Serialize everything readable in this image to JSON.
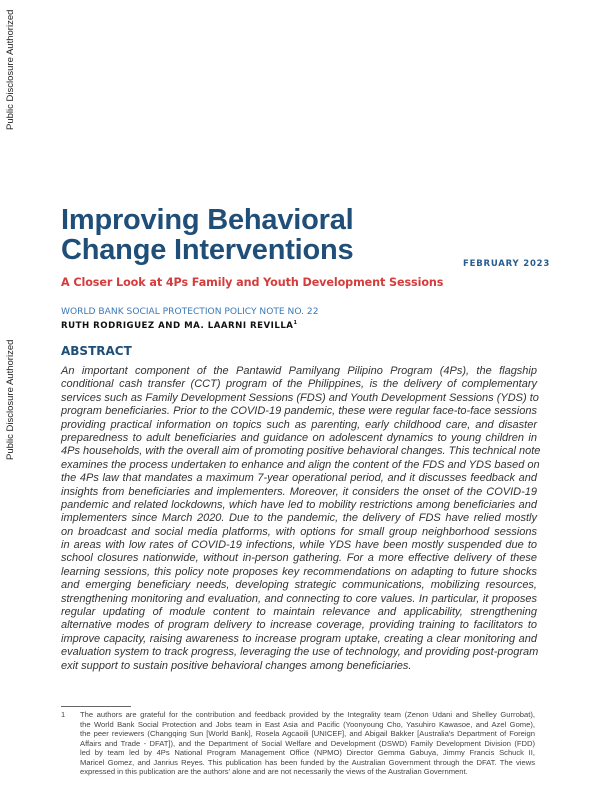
{
  "watermark": "Public Disclosure Authorized",
  "header": {
    "title_lines": [
      "Improving Behavioral",
      "Change Interventions"
    ],
    "date": "FEBRUARY 2023",
    "subtitle": "A Closer Look at 4Ps Family and Youth Development Sessions",
    "series": "WORLD BANK SOCIAL PROTECTION POLICY NOTE NO. 22",
    "authors": "RUTH RODRIGUEZ AND MA. LAARNI REVILLA",
    "authors_footnote_mark": "1"
  },
  "abstract": {
    "heading": "ABSTRACT",
    "lines": [
      "An important component of the Pantawid Pamilyang Pilipino Program (4Ps), the flagship",
      "conditional cash transfer (CCT) program of the Philippines, is the delivery of complementary",
      "services such as Family Development Sessions (FDS) and Youth Development Sessions (YDS) to",
      "program beneficiaries. Prior to the COVID-19 pandemic, these were regular face-to-face sessions",
      "providing practical information on topics such as parenting, early childhood care, and disaster",
      "preparedness to adult beneficiaries and guidance on adolescent dynamics to young children in",
      "4Ps households, with the overall aim of promoting positive behavioral changes. This technical note",
      "examines the process undertaken to enhance and align the content of the FDS and YDS based on",
      "the 4Ps law that mandates a maximum 7-year operational period, and it discusses feedback and",
      "insights from beneficiaries and implementers. Moreover, it considers the onset of the COVID-19",
      "pandemic and related lockdowns, which have led to mobility restrictions among beneficiaries and",
      "implementers since March 2020. Due to the pandemic, the delivery of FDS have relied mostly",
      "on broadcast and social media platforms, with options for small group neighborhood sessions",
      "in areas with low rates of COVID-19 infections, while YDS have been mostly suspended due to",
      "school closures nationwide, without in-person gathering. For a more effective delivery of these",
      "learning sessions, this policy note proposes key recommendations on adapting to future shocks",
      "and emerging beneficiary needs, developing strategic communications, mobilizing resources,",
      "strengthening monitoring and evaluation, and connecting to core values. In particular, it proposes",
      "regular updating of module content to maintain relevance and applicability, strengthening",
      "alternative modes of program delivery to increase coverage, providing training to facilitators to",
      "improve capacity, raising awareness to increase program uptake, creating a clear monitoring and",
      "evaluation system to track progress, leveraging the use of technology, and providing post-program",
      "exit support to sustain positive behavioral changes among beneficiaries."
    ]
  },
  "footnote": {
    "number": "1",
    "lines": [
      "The authors are grateful for the contribution and feedback provided by the Integrality team (Zenon Udani and Shelley Gurrobat),",
      "the World Bank Social Protection and Jobs team in East Asia and Pacific (Yoonyoung Cho, Yasuhiro Kawasoe, and Azel Gome),",
      "the peer reviewers (Changqing Sun [World Bank], Rosela Agcaoili [UNICEF], and Abigail Bakker [Australia's Department of Foreign",
      "Affairs and Trade - DFAT]), and the Department of Social Welfare and Development (DSWD) Family Development Division (FDD)",
      "led by team led by 4Ps National Program Management Office (NPMO) Director Gemma Gabuya, Jimmy Francis Schuck II,",
      "Maricel Gomez, and Janrius Reyes. This publication has been funded by the Australian Government through the DFAT. The views",
      "expressed in this publication are the authors' alone and are not necessarily the views of the Australian Government."
    ]
  },
  "colors": {
    "title": "#1f4e79",
    "subtitle": "#d63c3c",
    "series": "#3b79b6"
  }
}
